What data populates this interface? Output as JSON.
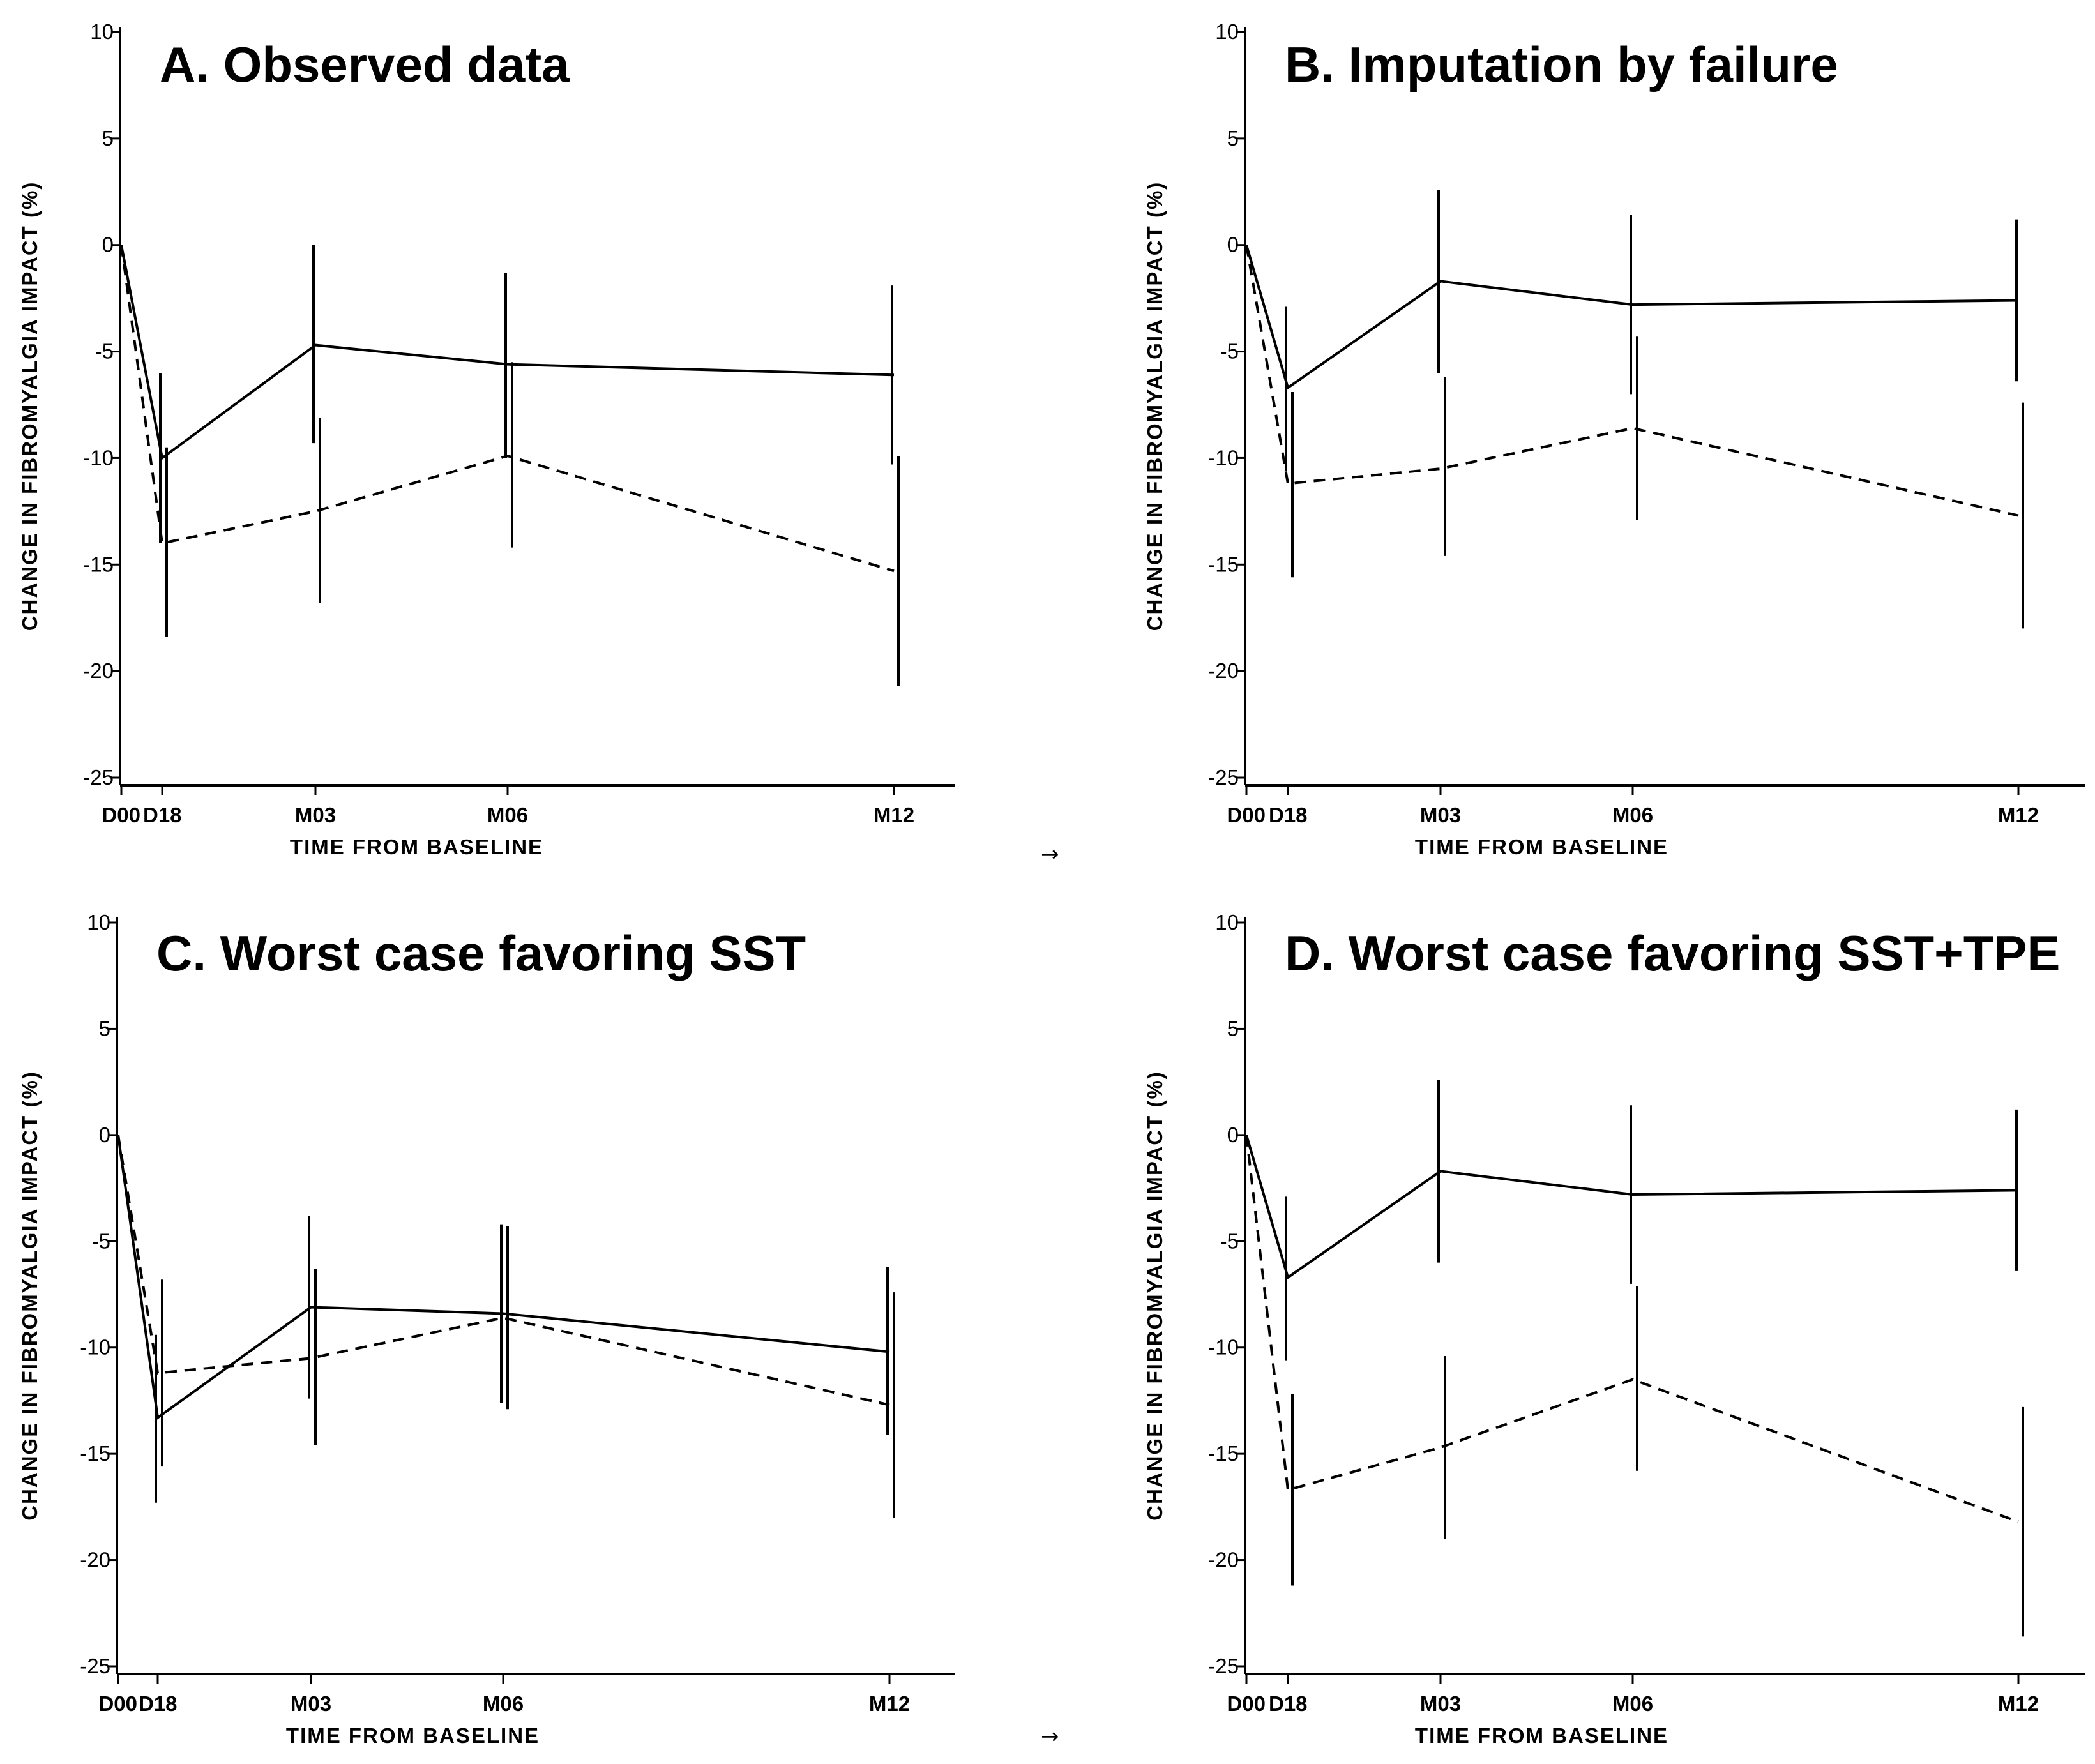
{
  "figure_arrows": [
    "→",
    "→"
  ],
  "chart_data": [
    {
      "type": "line",
      "title": "A. Observed data",
      "xlabel": "TIME FROM BASELINE",
      "ylabel": "CHANGE IN FIBROMYALGIA IMPACT (%)",
      "ylim": [
        -25,
        10
      ],
      "yticks": [
        10,
        5,
        0,
        -5,
        -10,
        -15,
        -20,
        -25
      ],
      "x_months": [
        0,
        0.6,
        3,
        6,
        12
      ],
      "x_tick_labels": [
        "D00",
        "D18",
        "M03",
        "M06",
        "M12"
      ],
      "series": [
        {
          "name": "solid",
          "style": "solid",
          "values": [
            0,
            -10,
            -4.7,
            -5.6,
            -6.1
          ],
          "err_low": [
            0,
            -14,
            -9.3,
            -10,
            -10.3
          ],
          "err_high": [
            0,
            -6,
            0,
            -1.3,
            -1.9
          ]
        },
        {
          "name": "dashed",
          "style": "dashed",
          "values": [
            0,
            -14,
            -12.5,
            -9.9,
            -15.3
          ],
          "err_low": [
            0,
            -18.4,
            -16.8,
            -14.2,
            -20.7
          ],
          "err_high": [
            0,
            -9.5,
            -8.1,
            -5.5,
            -9.9
          ]
        }
      ]
    },
    {
      "type": "line",
      "title": "B. Imputation by failure",
      "xlabel": "TIME FROM BASELINE",
      "ylabel": "CHANGE IN FIBROMYALGIA IMPACT (%)",
      "ylim": [
        -25,
        10
      ],
      "yticks": [
        10,
        5,
        0,
        -5,
        -10,
        -15,
        -20,
        -25
      ],
      "x_months": [
        0,
        0.6,
        3,
        6,
        12
      ],
      "x_tick_labels": [
        "D00",
        "D18",
        "M03",
        "M06",
        "M12"
      ],
      "series": [
        {
          "name": "solid",
          "style": "solid",
          "values": [
            0,
            -6.7,
            -1.7,
            -2.8,
            -2.6
          ],
          "err_low": [
            0,
            -10.6,
            -6,
            -7,
            -6.4
          ],
          "err_high": [
            0,
            -2.9,
            2.6,
            1.4,
            1.2
          ]
        },
        {
          "name": "dashed",
          "style": "dashed",
          "values": [
            0,
            -11.2,
            -10.5,
            -8.6,
            -12.7
          ],
          "err_low": [
            0,
            -15.6,
            -14.6,
            -12.9,
            -18
          ],
          "err_high": [
            0,
            -6.9,
            -6.2,
            -4.3,
            -7.4
          ]
        }
      ]
    },
    {
      "type": "line",
      "title": "C. Worst case favoring SST",
      "xlabel": "TIME FROM BASELINE",
      "ylabel": "CHANGE IN FIBROMYALGIA IMPACT (%)",
      "ylim": [
        -25,
        10
      ],
      "yticks": [
        10,
        5,
        0,
        -5,
        -10,
        -15,
        -20,
        -25
      ],
      "x_months": [
        0,
        0.6,
        3,
        6,
        12
      ],
      "x_tick_labels": [
        "D00",
        "D18",
        "M03",
        "M06",
        "M12"
      ],
      "series": [
        {
          "name": "solid",
          "style": "solid",
          "values": [
            0,
            -13.3,
            -8.1,
            -8.4,
            -10.2
          ],
          "err_low": [
            0,
            -17.3,
            -12.4,
            -12.6,
            -14.1
          ],
          "err_high": [
            0,
            -9.4,
            -3.8,
            -4.2,
            -6.2
          ]
        },
        {
          "name": "dashed",
          "style": "dashed",
          "values": [
            0,
            -11.2,
            -10.5,
            -8.6,
            -12.7
          ],
          "err_low": [
            0,
            -15.6,
            -14.6,
            -12.9,
            -18
          ],
          "err_high": [
            0,
            -6.8,
            -6.3,
            -4.3,
            -7.4
          ]
        }
      ]
    },
    {
      "type": "line",
      "title": "D. Worst case favoring SST+TPE",
      "xlabel": "TIME FROM BASELINE",
      "ylabel": "CHANGE IN FIBROMYALGIA IMPACT (%)",
      "ylim": [
        -25,
        10
      ],
      "yticks": [
        10,
        5,
        0,
        -5,
        -10,
        -15,
        -20,
        -25
      ],
      "x_months": [
        0,
        0.6,
        3,
        6,
        12
      ],
      "x_tick_labels": [
        "D00",
        "D18",
        "M03",
        "M06",
        "M12"
      ],
      "series": [
        {
          "name": "solid",
          "style": "solid",
          "values": [
            0,
            -6.7,
            -1.7,
            -2.8,
            -2.6
          ],
          "err_low": [
            0,
            -10.6,
            -6,
            -7,
            -6.4
          ],
          "err_high": [
            0,
            -2.9,
            2.6,
            1.4,
            1.2
          ]
        },
        {
          "name": "dashed",
          "style": "dashed",
          "values": [
            0,
            -16.7,
            -14.7,
            -11.5,
            -18.2
          ],
          "err_low": [
            0,
            -21.2,
            -19,
            -15.8,
            -23.6
          ],
          "err_high": [
            0,
            -12.2,
            -10.4,
            -7.1,
            -12.8
          ]
        }
      ]
    }
  ]
}
